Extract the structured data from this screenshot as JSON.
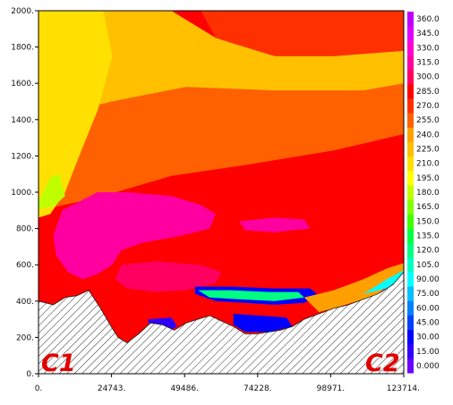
{
  "chart_data": {
    "type": "heatmap",
    "title": "",
    "xlabel": "",
    "ylabel": "",
    "x_ticks": [
      "0.",
      "24743.",
      "49486.",
      "74228.",
      "98971.",
      "123714."
    ],
    "y_ticks": [
      "0.",
      "200.",
      "400.",
      "600.",
      "800.",
      "1000.",
      "1200.",
      "1400.",
      "1600.",
      "1800.",
      "2000."
    ],
    "xlim": [
      0,
      123714
    ],
    "ylim": [
      0,
      2000
    ],
    "colorbar": {
      "labels": [
        "0.000",
        "15.00",
        "30.00",
        "45.00",
        "60.00",
        "75.00",
        "90.00",
        "105.0",
        "120.0",
        "135.0",
        "150.0",
        "165.0",
        "180.0",
        "195.0",
        "210.0",
        "225.0",
        "240.0",
        "255.0",
        "270.0",
        "285.0",
        "300.0",
        "315.0",
        "330.0",
        "345.0",
        "360.0"
      ],
      "colors": [
        "#6b00ff",
        "#3000ff",
        "#0000ff",
        "#0040ff",
        "#0080ff",
        "#00c0ff",
        "#00ffff",
        "#00ffc0",
        "#00ff80",
        "#00ff40",
        "#40ff00",
        "#80ff00",
        "#c0ff00",
        "#ffff00",
        "#ffe000",
        "#ffc000",
        "#ffa000",
        "#ff6000",
        "#ff3000",
        "#ff0000",
        "#ff0060",
        "#ff00a0",
        "#ff00d0",
        "#e000ff",
        "#c000ff"
      ]
    },
    "terrain_profile": [
      [
        0,
        400
      ],
      [
        5000,
        380
      ],
      [
        9000,
        420
      ],
      [
        13000,
        430
      ],
      [
        17000,
        460
      ],
      [
        21000,
        360
      ],
      [
        25000,
        250
      ],
      [
        27000,
        200
      ],
      [
        30000,
        170
      ],
      [
        34000,
        220
      ],
      [
        38000,
        280
      ],
      [
        42000,
        270
      ],
      [
        46000,
        240
      ],
      [
        50000,
        280
      ],
      [
        54000,
        300
      ],
      [
        58000,
        320
      ],
      [
        62000,
        290
      ],
      [
        66000,
        260
      ],
      [
        70000,
        220
      ],
      [
        74000,
        220
      ],
      [
        78000,
        230
      ],
      [
        82000,
        240
      ],
      [
        86000,
        260
      ],
      [
        90000,
        300
      ],
      [
        95000,
        330
      ],
      [
        100000,
        360
      ],
      [
        105000,
        380
      ],
      [
        110000,
        410
      ],
      [
        115000,
        440
      ],
      [
        120000,
        490
      ],
      [
        123714,
        560
      ]
    ],
    "regions": [
      {
        "value": 285,
        "polygon": [
          [
            0,
            900
          ],
          [
            20000,
            970
          ],
          [
            45000,
            1090
          ],
          [
            70000,
            1150
          ],
          [
            100000,
            1230
          ],
          [
            123714,
            1330
          ],
          [
            123714,
            560
          ],
          [
            0,
            400
          ]
        ]
      },
      {
        "value": 255,
        "polygon": [
          [
            0,
            1400
          ],
          [
            25000,
            1500
          ],
          [
            50000,
            1580
          ],
          [
            80000,
            1560
          ],
          [
            110000,
            1560
          ],
          [
            123714,
            1600
          ],
          [
            123714,
            1320
          ],
          [
            100000,
            1230
          ],
          [
            70000,
            1150
          ],
          [
            45000,
            1090
          ],
          [
            20000,
            970
          ],
          [
            0,
            900
          ]
        ]
      },
      {
        "value": 225,
        "polygon": [
          [
            0,
            2000
          ],
          [
            30000,
            2000
          ],
          [
            45000,
            2000
          ],
          [
            60000,
            1850
          ],
          [
            80000,
            1750
          ],
          [
            100000,
            1750
          ],
          [
            123714,
            1780
          ],
          [
            123714,
            1600
          ],
          [
            110000,
            1560
          ],
          [
            80000,
            1560
          ],
          [
            50000,
            1580
          ],
          [
            25000,
            1500
          ],
          [
            0,
            1400
          ]
        ]
      },
      {
        "value": 270,
        "polygon": [
          [
            55000,
            2000
          ],
          [
            123714,
            2000
          ],
          [
            123714,
            1780
          ],
          [
            100000,
            1750
          ],
          [
            80000,
            1750
          ],
          [
            60000,
            1850
          ]
        ]
      },
      {
        "value": 210,
        "polygon": [
          [
            0,
            2000
          ],
          [
            22000,
            2000
          ],
          [
            25000,
            1750
          ],
          [
            20000,
            1450
          ],
          [
            15000,
            1250
          ],
          [
            9000,
            1000
          ],
          [
            4000,
            880
          ],
          [
            0,
            860
          ]
        ]
      },
      {
        "value": 315,
        "polygon": [
          [
            8000,
            900
          ],
          [
            20000,
            1000
          ],
          [
            30000,
            1000
          ],
          [
            45000,
            980
          ],
          [
            55000,
            930
          ],
          [
            60000,
            880
          ],
          [
            58000,
            800
          ],
          [
            48000,
            760
          ],
          [
            35000,
            720
          ],
          [
            28000,
            680
          ],
          [
            25000,
            600
          ],
          [
            20000,
            550
          ],
          [
            15000,
            520
          ],
          [
            10000,
            560
          ],
          [
            6000,
            650
          ],
          [
            5000,
            760
          ]
        ]
      },
      {
        "value": 315,
        "polygon": [
          [
            68000,
            840
          ],
          [
            80000,
            860
          ],
          [
            90000,
            850
          ],
          [
            92000,
            800
          ],
          [
            80000,
            780
          ],
          [
            70000,
            790
          ]
        ]
      },
      {
        "value": 300,
        "polygon": [
          [
            28000,
            600
          ],
          [
            40000,
            620
          ],
          [
            55000,
            600
          ],
          [
            62000,
            560
          ],
          [
            60000,
            500
          ],
          [
            50000,
            460
          ],
          [
            40000,
            450
          ],
          [
            30000,
            470
          ],
          [
            26000,
            520
          ]
        ]
      },
      {
        "value": 180,
        "polygon": [
          [
            0,
            950
          ],
          [
            4000,
            1080
          ],
          [
            7000,
            1100
          ],
          [
            9000,
            980
          ],
          [
            5000,
            920
          ],
          [
            0,
            910
          ]
        ]
      },
      {
        "value": 30,
        "polygon": [
          [
            53000,
            480
          ],
          [
            66000,
            480
          ],
          [
            80000,
            470
          ],
          [
            92000,
            470
          ],
          [
            95000,
            430
          ],
          [
            90000,
            390
          ],
          [
            80000,
            380
          ],
          [
            70000,
            390
          ],
          [
            60000,
            400
          ],
          [
            53000,
            440
          ]
        ]
      },
      {
        "value": 120,
        "polygon": [
          [
            54000,
            460
          ],
          [
            65000,
            460
          ],
          [
            78000,
            450
          ],
          [
            88000,
            450
          ],
          [
            90000,
            420
          ],
          [
            80000,
            400
          ],
          [
            68000,
            410
          ],
          [
            58000,
            420
          ]
        ]
      },
      {
        "value": 240,
        "polygon": [
          [
            90000,
            420
          ],
          [
            100000,
            460
          ],
          [
            110000,
            520
          ],
          [
            118000,
            580
          ],
          [
            123714,
            610
          ],
          [
            123714,
            560
          ],
          [
            115000,
            440
          ],
          [
            110000,
            410
          ],
          [
            100000,
            360
          ],
          [
            95000,
            340
          ]
        ]
      },
      {
        "value": 90,
        "polygon": [
          [
            110000,
            440
          ],
          [
            118000,
            520
          ],
          [
            123714,
            570
          ],
          [
            123714,
            540
          ],
          [
            118000,
            470
          ]
        ]
      },
      {
        "value": 15,
        "polygon": [
          [
            37000,
            300
          ],
          [
            45000,
            310
          ],
          [
            47000,
            260
          ],
          [
            42000,
            220
          ],
          [
            38000,
            240
          ]
        ]
      },
      {
        "value": 30,
        "polygon": [
          [
            66000,
            330
          ],
          [
            75000,
            320
          ],
          [
            84000,
            310
          ],
          [
            86000,
            260
          ],
          [
            78000,
            230
          ],
          [
            70000,
            230
          ],
          [
            66000,
            270
          ]
        ]
      }
    ],
    "annotations": [
      "C1",
      "C2"
    ]
  }
}
